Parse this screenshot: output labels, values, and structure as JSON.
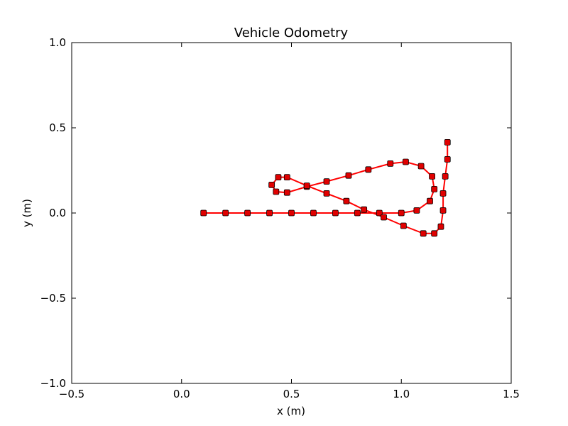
{
  "chart_data": {
    "type": "line",
    "title": "Vehicle Odometry",
    "xlabel": "x (m)",
    "ylabel": "y (m)",
    "xlim": [
      -0.5,
      1.5
    ],
    "ylim": [
      -1.0,
      1.0
    ],
    "xticks": [
      -0.5,
      0.0,
      0.5,
      1.0,
      1.5
    ],
    "xtick_labels": [
      "−0.5",
      "0.0",
      "0.5",
      "1.0",
      "1.5"
    ],
    "yticks": [
      -1.0,
      -0.5,
      0.0,
      0.5,
      1.0
    ],
    "ytick_labels": [
      "−1.0",
      "−0.5",
      "0.0",
      "0.5",
      "1.0"
    ],
    "grid": false,
    "series": [
      {
        "line_color": "#ff0000",
        "marker": "square",
        "marker_color": "#e00000",
        "x": [
          0.1,
          0.2,
          0.3,
          0.4,
          0.5,
          0.6,
          0.7,
          0.8,
          0.9,
          1.0,
          1.07,
          1.13,
          1.15,
          1.14,
          1.09,
          1.02,
          0.95,
          0.85,
          0.76,
          0.66,
          0.57,
          0.48,
          0.43,
          0.41,
          0.44,
          0.48,
          0.57,
          0.66,
          0.75,
          0.83,
          0.92,
          1.01,
          1.1,
          1.15,
          1.18,
          1.19,
          1.19,
          1.2,
          1.21,
          1.21
        ],
        "y": [
          0.0,
          0.0,
          0.0,
          0.0,
          0.0,
          0.0,
          0.0,
          0.0,
          0.0,
          0.0,
          0.015,
          0.07,
          0.14,
          0.215,
          0.275,
          0.3,
          0.29,
          0.255,
          0.22,
          0.185,
          0.155,
          0.12,
          0.125,
          0.165,
          0.21,
          0.21,
          0.16,
          0.115,
          0.07,
          0.02,
          -0.025,
          -0.075,
          -0.12,
          -0.12,
          -0.08,
          0.015,
          0.115,
          0.215,
          0.315,
          0.415
        ]
      }
    ]
  }
}
